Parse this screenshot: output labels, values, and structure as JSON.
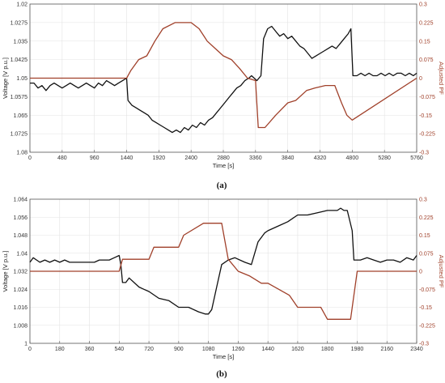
{
  "colors": {
    "voltage": "#111111",
    "pf": "#a0402a",
    "right_axis": "#a0402a",
    "grid": "#e3e3e3"
  },
  "chart_data": [
    {
      "type": "line",
      "panel_label": "(a)",
      "xlabel": "Time [s]",
      "ylabel_left": "Voltage [V p.u.]",
      "ylabel_right": "Adjusted PF",
      "xlim": [
        0,
        5760
      ],
      "ylim_left": [
        1.02,
        1.08
      ],
      "ylim_right": [
        -0.3,
        0.3
      ],
      "x_ticks": [
        "0",
        "480",
        "960",
        "1440",
        "1920",
        "2400",
        "2880",
        "3360",
        "3840",
        "4320",
        "4800",
        "5280",
        "5760"
      ],
      "y_left_ticks": [
        "1.02",
        "1.0275",
        "1.035",
        "1.0425",
        "1.05",
        "1.0575",
        "1.065",
        "1.0725",
        "1.08"
      ],
      "y_right_ticks": [
        "0.3",
        "0.225",
        "0.15",
        "0.075",
        "0",
        "-0.075",
        "-0.15",
        "-0.225",
        "-0.3"
      ],
      "grid": true,
      "series": [
        {
          "name": "",
          "axis": "left",
          "color": "#111111",
          "x": [
            0,
            60,
            120,
            180,
            240,
            300,
            360,
            420,
            480,
            540,
            600,
            660,
            720,
            780,
            840,
            900,
            960,
            1020,
            1080,
            1140,
            1200,
            1260,
            1320,
            1380,
            1440,
            1460,
            1520,
            1580,
            1640,
            1700,
            1760,
            1820,
            1880,
            1940,
            2000,
            2060,
            2120,
            2180,
            2240,
            2300,
            2360,
            2420,
            2480,
            2540,
            2600,
            2660,
            2720,
            2780,
            2840,
            2900,
            2960,
            3020,
            3080,
            3140,
            3200,
            3260,
            3300,
            3340,
            3380,
            3440,
            3480,
            3540,
            3600,
            3660,
            3720,
            3780,
            3840,
            3900,
            3960,
            4020,
            4080,
            4140,
            4200,
            4260,
            4320,
            4380,
            4440,
            4500,
            4560,
            4620,
            4680,
            4740,
            4780,
            4810,
            4870,
            4930,
            4990,
            5050,
            5110,
            5170,
            5230,
            5290,
            5350,
            5410,
            5470,
            5530,
            5590,
            5650,
            5710,
            5760
          ],
          "y": [
            1.048,
            1.048,
            1.046,
            1.047,
            1.045,
            1.047,
            1.048,
            1.047,
            1.046,
            1.047,
            1.048,
            1.047,
            1.046,
            1.047,
            1.048,
            1.047,
            1.046,
            1.048,
            1.047,
            1.049,
            1.048,
            1.047,
            1.048,
            1.049,
            1.05,
            1.041,
            1.039,
            1.038,
            1.037,
            1.036,
            1.035,
            1.033,
            1.032,
            1.031,
            1.03,
            1.029,
            1.028,
            1.029,
            1.028,
            1.03,
            1.029,
            1.031,
            1.03,
            1.032,
            1.031,
            1.033,
            1.034,
            1.036,
            1.038,
            1.04,
            1.042,
            1.044,
            1.046,
            1.047,
            1.049,
            1.05,
            1.051,
            1.05,
            1.049,
            1.051,
            1.066,
            1.07,
            1.071,
            1.069,
            1.067,
            1.068,
            1.066,
            1.067,
            1.065,
            1.063,
            1.062,
            1.06,
            1.058,
            1.059,
            1.06,
            1.061,
            1.062,
            1.063,
            1.062,
            1.064,
            1.066,
            1.068,
            1.07,
            1.051,
            1.051,
            1.052,
            1.051,
            1.052,
            1.051,
            1.051,
            1.052,
            1.051,
            1.052,
            1.051,
            1.052,
            1.052,
            1.051,
            1.052,
            1.051,
            1.052
          ]
        },
        {
          "name": "",
          "axis": "right",
          "color": "#a0402a",
          "x": [
            0,
            1440,
            1500,
            1620,
            1740,
            1860,
            1980,
            2160,
            2400,
            2520,
            2640,
            2760,
            2880,
            3000,
            3120,
            3240,
            3360,
            3400,
            3500,
            3660,
            3840,
            3960,
            4120,
            4240,
            4400,
            4540,
            4640,
            4720,
            4800,
            5760
          ],
          "y": [
            0,
            0,
            0.03,
            0.075,
            0.09,
            0.15,
            0.2,
            0.225,
            0.225,
            0.2,
            0.15,
            0.12,
            0.09,
            0.075,
            0.04,
            0.0,
            -0.01,
            -0.2,
            -0.2,
            -0.15,
            -0.1,
            -0.09,
            -0.05,
            -0.04,
            -0.03,
            -0.03,
            -0.1,
            -0.15,
            -0.17,
            0
          ]
        }
      ]
    },
    {
      "type": "line",
      "panel_label": "(b)",
      "xlabel": "Time [s]",
      "ylabel_left": "Voltage [V p.u.]",
      "ylabel_right": "Adjusted PF",
      "xlim": [
        0,
        2340
      ],
      "ylim_left": [
        1.0,
        1.064
      ],
      "ylim_right": [
        -0.3,
        0.3
      ],
      "x_ticks": [
        "0",
        "180",
        "360",
        "540",
        "720",
        "900",
        "1080",
        "1260",
        "1440",
        "1620",
        "1800",
        "1980",
        "2160",
        "2340"
      ],
      "y_left_ticks": [
        "1.064",
        "1.056",
        "1.048",
        "1.04",
        "1.032",
        "1.024",
        "1.016",
        "1.008",
        "1"
      ],
      "y_right_ticks": [
        "0.3",
        "0.225",
        "0.15",
        "0.075",
        "0",
        "-0.075",
        "-0.15",
        "-0.225",
        "-0.3"
      ],
      "grid": true,
      "series": [
        {
          "name": "",
          "axis": "left",
          "color": "#111111",
          "x": [
            0,
            20,
            40,
            60,
            90,
            120,
            150,
            180,
            210,
            240,
            270,
            300,
            330,
            360,
            390,
            420,
            450,
            480,
            510,
            540,
            550,
            560,
            580,
            600,
            630,
            660,
            690,
            720,
            780,
            840,
            900,
            960,
            1020,
            1060,
            1080,
            1100,
            1130,
            1160,
            1200,
            1240,
            1300,
            1340,
            1380,
            1420,
            1440,
            1500,
            1560,
            1620,
            1680,
            1740,
            1800,
            1860,
            1880,
            1900,
            1920,
            1950,
            1960,
            2000,
            2040,
            2080,
            2120,
            2160,
            2200,
            2240,
            2280,
            2320,
            2340
          ],
          "y": [
            1.036,
            1.038,
            1.037,
            1.036,
            1.037,
            1.036,
            1.037,
            1.036,
            1.037,
            1.036,
            1.036,
            1.036,
            1.036,
            1.036,
            1.036,
            1.037,
            1.037,
            1.037,
            1.038,
            1.039,
            1.035,
            1.027,
            1.027,
            1.029,
            1.027,
            1.025,
            1.024,
            1.023,
            1.02,
            1.019,
            1.016,
            1.016,
            1.014,
            1.013,
            1.013,
            1.015,
            1.025,
            1.035,
            1.037,
            1.038,
            1.036,
            1.035,
            1.045,
            1.049,
            1.05,
            1.052,
            1.054,
            1.057,
            1.057,
            1.058,
            1.059,
            1.059,
            1.06,
            1.059,
            1.059,
            1.05,
            1.037,
            1.037,
            1.038,
            1.037,
            1.036,
            1.037,
            1.037,
            1.036,
            1.038,
            1.037,
            1.039
          ]
        },
        {
          "name": "",
          "axis": "right",
          "color": "#a0402a",
          "x": [
            0,
            540,
            560,
            720,
            750,
            900,
            930,
            1050,
            1080,
            1160,
            1200,
            1260,
            1330,
            1400,
            1440,
            1570,
            1620,
            1760,
            1800,
            1940,
            1980,
            2340
          ],
          "y": [
            0,
            0,
            0.05,
            0.05,
            0.1,
            0.1,
            0.15,
            0.2,
            0.2,
            0.2,
            0.05,
            0,
            -0.02,
            -0.05,
            -0.05,
            -0.1,
            -0.15,
            -0.15,
            -0.2,
            -0.2,
            0,
            0
          ]
        }
      ]
    }
  ]
}
